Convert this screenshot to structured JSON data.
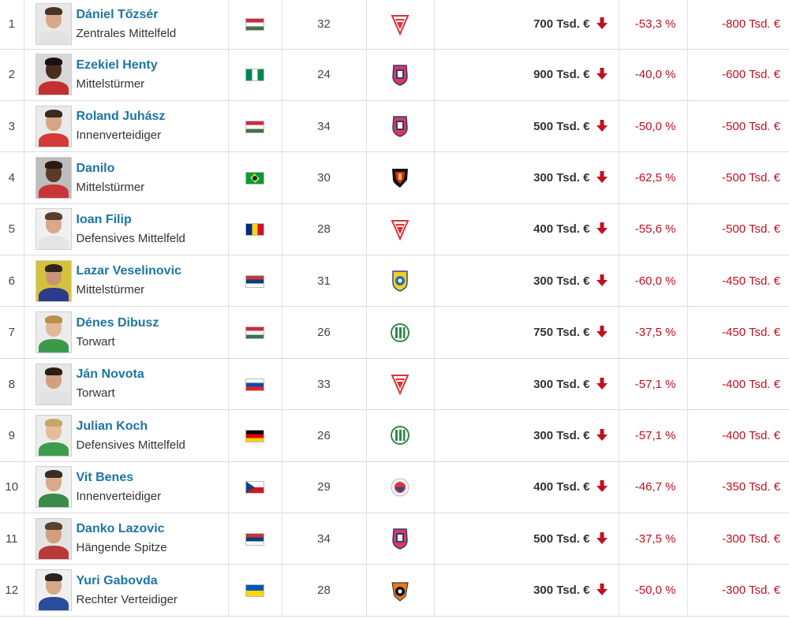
{
  "rows": [
    {
      "rank": "1",
      "name": "Dániel Tőzsér",
      "position": "Zentrales Mittelfeld",
      "flag": "hu",
      "age": "32",
      "club_icon": "club-crest-debrecen",
      "value": "700 Tsd. €",
      "pct": "-53,3 %",
      "diff": "-800 Tsd. €",
      "photo": {
        "skin": "#d9a888",
        "hair": "#4a3424",
        "shirt": "#e2e2e2",
        "bg": "#e8e8e8"
      }
    },
    {
      "rank": "2",
      "name": "Ezekiel Henty",
      "position": "Mittelstürmer",
      "flag": "ng",
      "age": "24",
      "club_icon": "club-crest-videoton",
      "value": "900 Tsd. €",
      "pct": "-40,0 %",
      "diff": "-600 Tsd. €",
      "photo": {
        "skin": "#4a2c1f",
        "hair": "#1a1210",
        "shirt": "#c23030",
        "bg": "#d8d8d8"
      }
    },
    {
      "rank": "3",
      "name": "Roland Juhász",
      "position": "Innenverteidiger",
      "flag": "hu",
      "age": "34",
      "club_icon": "club-crest-videoton",
      "value": "500 Tsd. €",
      "pct": "-50,0 %",
      "diff": "-500 Tsd. €",
      "photo": {
        "skin": "#d7a584",
        "hair": "#3a2a20",
        "shirt": "#d33a3a",
        "bg": "#eaeaea"
      }
    },
    {
      "rank": "4",
      "name": "Danilo",
      "position": "Mittelstürmer",
      "flag": "br",
      "age": "30",
      "club_icon": "club-crest-honved",
      "value": "300 Tsd. €",
      "pct": "-62,5 %",
      "diff": "-500 Tsd. €",
      "photo": {
        "skin": "#5b3a2a",
        "hair": "#2a1a14",
        "shirt": "#c9363a",
        "bg": "#bdbdbd"
      }
    },
    {
      "rank": "5",
      "name": "Ioan Filip",
      "position": "Defensives Mittelfeld",
      "flag": "ro",
      "age": "28",
      "club_icon": "club-crest-debrecen",
      "value": "400 Tsd. €",
      "pct": "-55,6 %",
      "diff": "-500 Tsd. €",
      "photo": {
        "skin": "#d8a987",
        "hair": "#5a3e2c",
        "shirt": "#e5e5e5",
        "bg": "#f0f0f0"
      }
    },
    {
      "rank": "6",
      "name": "Lazar Veselinovic",
      "position": "Mittelstürmer",
      "flag": "rs",
      "age": "31",
      "club_icon": "club-crest-puskas",
      "value": "300 Tsd. €",
      "pct": "-60,0 %",
      "diff": "-450 Tsd. €",
      "photo": {
        "skin": "#c99575",
        "hair": "#2f241c",
        "shirt": "#2a3c8a",
        "bg": "#d4c23c"
      }
    },
    {
      "rank": "7",
      "name": "Dénes Dibusz",
      "position": "Torwart",
      "flag": "hu",
      "age": "26",
      "club_icon": "club-crest-ferencvaros",
      "value": "750 Tsd. €",
      "pct": "-37,5 %",
      "diff": "-450 Tsd. €",
      "photo": {
        "skin": "#e2b898",
        "hair": "#b8904e",
        "shirt": "#3a9a4a",
        "bg": "#ececec"
      }
    },
    {
      "rank": "8",
      "name": "Ján Novota",
      "position": "Torwart",
      "flag": "sk",
      "age": "33",
      "club_icon": "club-crest-debrecen",
      "value": "300 Tsd. €",
      "pct": "-57,1 %",
      "diff": "-400 Tsd. €",
      "photo": {
        "skin": "#d0a080",
        "hair": "#2a1e18",
        "shirt": "#e2e2e2",
        "bg": "#e6e6e6"
      }
    },
    {
      "rank": "9",
      "name": "Julian Koch",
      "position": "Defensives Mittelfeld",
      "flag": "de",
      "age": "26",
      "club_icon": "club-crest-ferencvaros",
      "value": "300 Tsd. €",
      "pct": "-57,1 %",
      "diff": "-400 Tsd. €",
      "photo": {
        "skin": "#e5bc9e",
        "hair": "#c8a468",
        "shirt": "#3e9c4e",
        "bg": "#ececec"
      }
    },
    {
      "rank": "10",
      "name": "Vit Benes",
      "position": "Innenverteidiger",
      "flag": "cz",
      "age": "29",
      "club_icon": "club-crest-vasas",
      "value": "400 Tsd. €",
      "pct": "-46,7 %",
      "diff": "-350 Tsd. €",
      "photo": {
        "skin": "#d9aa89",
        "hair": "#3a2c22",
        "shirt": "#3a8a4a",
        "bg": "#efefef"
      }
    },
    {
      "rank": "11",
      "name": "Danko Lazovic",
      "position": "Hängende Spitze",
      "flag": "rs",
      "age": "34",
      "club_icon": "club-crest-videoton",
      "value": "500 Tsd. €",
      "pct": "-37,5 %",
      "diff": "-300 Tsd. €",
      "photo": {
        "skin": "#cf9f7f",
        "hair": "#5a4030",
        "shirt": "#b83a3a",
        "bg": "#e4e4e4"
      }
    },
    {
      "rank": "12",
      "name": "Yuri Gabovda",
      "position": "Rechter Verteidiger",
      "flag": "ua",
      "age": "28",
      "club_icon": "club-crest-mezokovesd",
      "value": "300 Tsd. €",
      "pct": "-50,0 %",
      "diff": "-300 Tsd. €",
      "photo": {
        "skin": "#d7a887",
        "hair": "#2a221c",
        "shirt": "#2a4c9a",
        "bg": "#f0f0f0"
      }
    }
  ]
}
